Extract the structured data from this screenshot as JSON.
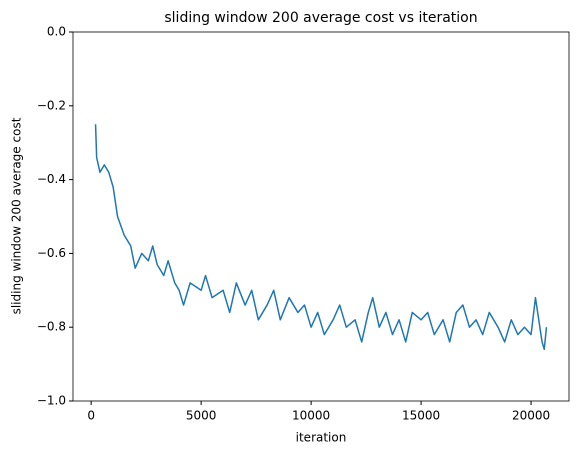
{
  "chart_data": {
    "type": "line",
    "title": "sliding window 200 average cost vs iteration",
    "xlabel": "iteration",
    "ylabel": "sliding window 200 average cost",
    "x": [
      200,
      250,
      400,
      600,
      800,
      1000,
      1200,
      1500,
      1800,
      2000,
      2300,
      2600,
      2800,
      3000,
      3300,
      3500,
      3800,
      4000,
      4200,
      4500,
      5000,
      5200,
      5500,
      6000,
      6300,
      6600,
      7000,
      7300,
      7600,
      8000,
      8300,
      8600,
      9000,
      9400,
      9700,
      10000,
      10300,
      10600,
      11000,
      11300,
      11600,
      12000,
      12300,
      12600,
      12800,
      13100,
      13400,
      13700,
      14000,
      14300,
      14600,
      15000,
      15300,
      15600,
      16000,
      16300,
      16600,
      16900,
      17200,
      17500,
      17800,
      18100,
      18500,
      18800,
      19100,
      19400,
      19700,
      20000,
      20200,
      20300,
      20500,
      20600,
      20700
    ],
    "series": [
      {
        "name": "cost",
        "color": "#1f77b4",
        "values": [
          -0.25,
          -0.34,
          -0.38,
          -0.36,
          -0.38,
          -0.42,
          -0.5,
          -0.55,
          -0.58,
          -0.64,
          -0.6,
          -0.62,
          -0.58,
          -0.63,
          -0.66,
          -0.62,
          -0.68,
          -0.7,
          -0.74,
          -0.68,
          -0.7,
          -0.66,
          -0.72,
          -0.7,
          -0.76,
          -0.68,
          -0.74,
          -0.7,
          -0.78,
          -0.74,
          -0.7,
          -0.78,
          -0.72,
          -0.76,
          -0.74,
          -0.8,
          -0.76,
          -0.82,
          -0.78,
          -0.74,
          -0.8,
          -0.78,
          -0.84,
          -0.76,
          -0.72,
          -0.8,
          -0.76,
          -0.82,
          -0.78,
          -0.84,
          -0.76,
          -0.78,
          -0.76,
          -0.82,
          -0.78,
          -0.84,
          -0.76,
          -0.74,
          -0.8,
          -0.78,
          -0.82,
          -0.76,
          -0.8,
          -0.84,
          -0.78,
          -0.82,
          -0.8,
          -0.82,
          -0.72,
          -0.76,
          -0.84,
          -0.86,
          -0.8
        ]
      }
    ],
    "xlim": [
      -825,
      21725
    ],
    "xticks": [
      0,
      5000,
      10000,
      15000,
      20000
    ],
    "ylim": [
      -1,
      0
    ],
    "yticks": [
      {
        "value": -1,
        "label": "−1.0"
      },
      {
        "value": -0.8,
        "label": "−0.8"
      },
      {
        "value": -0.6,
        "label": "−0.6"
      },
      {
        "value": -0.4,
        "label": "−0.4"
      },
      {
        "value": -0.2,
        "label": "−0.2"
      },
      {
        "value": 0,
        "label": "0.0"
      }
    ],
    "grid": false
  }
}
